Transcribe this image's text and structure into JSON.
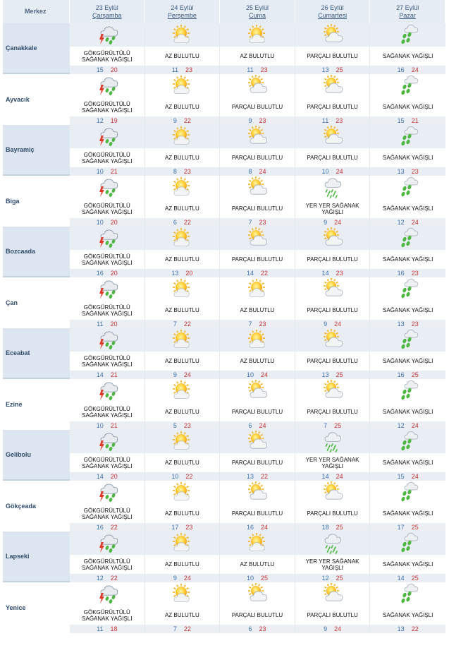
{
  "header": {
    "merkez_label": "Merkez",
    "days": [
      {
        "date": "23 Eylül",
        "day": "Çarşamba"
      },
      {
        "date": "24 Eylül",
        "day": "Perşembe"
      },
      {
        "date": "25 Eylül",
        "day": "Cuma"
      },
      {
        "date": "26 Eylül",
        "day": "Cumartesi"
      },
      {
        "date": "27 Eylül",
        "day": "Pazar"
      }
    ]
  },
  "icons": {
    "GÖKGÜRÜLTÜLÜ SAĞANAK YAĞIŞLI": "thunderstorm-icon",
    "AZ BULUTLU": "sun-little-cloud-icon",
    "PARÇALI BULUTLU": "partly-cloudy-icon",
    "SAĞANAK YAĞIŞLI": "shower-icon",
    "YER YER SAĞANAK YAĞIŞLI": "scattered-shower-icon"
  },
  "rows": [
    {
      "city": "Çanakkale",
      "forecasts": [
        {
          "desc": "GÖKGÜRÜLTÜLÜ SAĞANAK YAĞIŞLI",
          "min": "15",
          "max": "20"
        },
        {
          "desc": "AZ BULUTLU",
          "min": "11",
          "max": "23"
        },
        {
          "desc": "AZ BULUTLU",
          "min": "11",
          "max": "23"
        },
        {
          "desc": "PARÇALI BULUTLU",
          "min": "13",
          "max": "25"
        },
        {
          "desc": "SAĞANAK YAĞIŞLI",
          "min": "16",
          "max": "24"
        }
      ]
    },
    {
      "city": "Ayvacık",
      "forecasts": [
        {
          "desc": "GÖKGÜRÜLTÜLÜ SAĞANAK YAĞIŞLI",
          "min": "12",
          "max": "19"
        },
        {
          "desc": "AZ BULUTLU",
          "min": "9",
          "max": "22"
        },
        {
          "desc": "PARÇALI BULUTLU",
          "min": "9",
          "max": "23"
        },
        {
          "desc": "PARÇALI BULUTLU",
          "min": "11",
          "max": "23"
        },
        {
          "desc": "SAĞANAK YAĞIŞLI",
          "min": "15",
          "max": "21"
        }
      ]
    },
    {
      "city": "Bayramiç",
      "forecasts": [
        {
          "desc": "GÖKGÜRÜLTÜLÜ SAĞANAK YAĞIŞLI",
          "min": "10",
          "max": "21"
        },
        {
          "desc": "AZ BULUTLU",
          "min": "8",
          "max": "23"
        },
        {
          "desc": "PARÇALI BULUTLU",
          "min": "8",
          "max": "24"
        },
        {
          "desc": "PARÇALI BULUTLU",
          "min": "10",
          "max": "24"
        },
        {
          "desc": "SAĞANAK YAĞIŞLI",
          "min": "13",
          "max": "23"
        }
      ]
    },
    {
      "city": "Biga",
      "forecasts": [
        {
          "desc": "GÖKGÜRÜLTÜLÜ SAĞANAK YAĞIŞLI",
          "min": "10",
          "max": "20"
        },
        {
          "desc": "AZ BULUTLU",
          "min": "6",
          "max": "22"
        },
        {
          "desc": "PARÇALI BULUTLU",
          "min": "7",
          "max": "23"
        },
        {
          "desc": "YER YER SAĞANAK YAĞIŞLI",
          "min": "9",
          "max": "24"
        },
        {
          "desc": "SAĞANAK YAĞIŞLI",
          "min": "12",
          "max": "24"
        }
      ]
    },
    {
      "city": "Bozcaada",
      "forecasts": [
        {
          "desc": "GÖKGÜRÜLTÜLÜ SAĞANAK YAĞIŞLI",
          "min": "16",
          "max": "20"
        },
        {
          "desc": "AZ BULUTLU",
          "min": "13",
          "max": "20"
        },
        {
          "desc": "PARÇALI BULUTLU",
          "min": "14",
          "max": "22"
        },
        {
          "desc": "PARÇALI BULUTLU",
          "min": "14",
          "max": "23"
        },
        {
          "desc": "SAĞANAK YAĞIŞLI",
          "min": "16",
          "max": "23"
        }
      ]
    },
    {
      "city": "Çan",
      "forecasts": [
        {
          "desc": "GÖKGÜRÜLTÜLÜ SAĞANAK YAĞIŞLI",
          "min": "11",
          "max": "20"
        },
        {
          "desc": "AZ BULUTLU",
          "min": "7",
          "max": "22"
        },
        {
          "desc": "AZ BULUTLU",
          "min": "7",
          "max": "23"
        },
        {
          "desc": "PARÇALI BULUTLU",
          "min": "9",
          "max": "24"
        },
        {
          "desc": "SAĞANAK YAĞIŞLI",
          "min": "13",
          "max": "23"
        }
      ]
    },
    {
      "city": "Eceabat",
      "forecasts": [
        {
          "desc": "GÖKGÜRÜLTÜLÜ SAĞANAK YAĞIŞLI",
          "min": "14",
          "max": "21"
        },
        {
          "desc": "AZ BULUTLU",
          "min": "9",
          "max": "24"
        },
        {
          "desc": "AZ BULUTLU",
          "min": "10",
          "max": "24"
        },
        {
          "desc": "PARÇALI BULUTLU",
          "min": "13",
          "max": "25"
        },
        {
          "desc": "SAĞANAK YAĞIŞLI",
          "min": "16",
          "max": "25"
        }
      ]
    },
    {
      "city": "Ezine",
      "forecasts": [
        {
          "desc": "GÖKGÜRÜLTÜLÜ SAĞANAK YAĞIŞLI",
          "min": "10",
          "max": "21"
        },
        {
          "desc": "AZ BULUTLU",
          "min": "5",
          "max": "23"
        },
        {
          "desc": "PARÇALI BULUTLU",
          "min": "6",
          "max": "24"
        },
        {
          "desc": "PARÇALI BULUTLU",
          "min": "7",
          "max": "25"
        },
        {
          "desc": "SAĞANAK YAĞIŞLI",
          "min": "12",
          "max": "24"
        }
      ]
    },
    {
      "city": "Gelibolu",
      "forecasts": [
        {
          "desc": "GÖKGÜRÜLTÜLÜ SAĞANAK YAĞIŞLI",
          "min": "14",
          "max": "20"
        },
        {
          "desc": "AZ BULUTLU",
          "min": "10",
          "max": "22"
        },
        {
          "desc": "PARÇALI BULUTLU",
          "min": "13",
          "max": "22"
        },
        {
          "desc": "YER YER SAĞANAK YAĞIŞLI",
          "min": "14",
          "max": "24"
        },
        {
          "desc": "SAĞANAK YAĞIŞLI",
          "min": "15",
          "max": "24"
        }
      ]
    },
    {
      "city": "Gökçeada",
      "forecasts": [
        {
          "desc": "GÖKGÜRÜLTÜLÜ SAĞANAK YAĞIŞLI",
          "min": "16",
          "max": "22"
        },
        {
          "desc": "AZ BULUTLU",
          "min": "17",
          "max": "23"
        },
        {
          "desc": "PARÇALI BULUTLU",
          "min": "16",
          "max": "24"
        },
        {
          "desc": "PARÇALI BULUTLU",
          "min": "18",
          "max": "25"
        },
        {
          "desc": "SAĞANAK YAĞIŞLI",
          "min": "17",
          "max": "25"
        }
      ]
    },
    {
      "city": "Lapseki",
      "forecasts": [
        {
          "desc": "GÖKGÜRÜLTÜLÜ SAĞANAK YAĞIŞLI",
          "min": "12",
          "max": "22"
        },
        {
          "desc": "AZ BULUTLU",
          "min": "9",
          "max": "24"
        },
        {
          "desc": "AZ BULUTLU",
          "min": "10",
          "max": "25"
        },
        {
          "desc": "YER YER SAĞANAK YAĞIŞLI",
          "min": "12",
          "max": "25"
        },
        {
          "desc": "SAĞANAK YAĞIŞLI",
          "min": "14",
          "max": "25"
        }
      ]
    },
    {
      "city": "Yenice",
      "forecasts": [
        {
          "desc": "GÖKGÜRÜLTÜLÜ SAĞANAK YAĞIŞLI",
          "min": "11",
          "max": "18"
        },
        {
          "desc": "AZ BULUTLU",
          "min": "7",
          "max": "22"
        },
        {
          "desc": "PARÇALI BULUTLU",
          "min": "6",
          "max": "23"
        },
        {
          "desc": "PARÇALI BULUTLU",
          "min": "9",
          "max": "24"
        },
        {
          "desc": "SAĞANAK YAĞIŞLI",
          "min": "13",
          "max": "22"
        }
      ]
    }
  ],
  "colors": {
    "header_bg": "#e6ecf3",
    "header_text": "#3b5b86",
    "city_text": "#2f4b6e",
    "min_temp": "#3c6fb0",
    "max_temp": "#c73232"
  }
}
